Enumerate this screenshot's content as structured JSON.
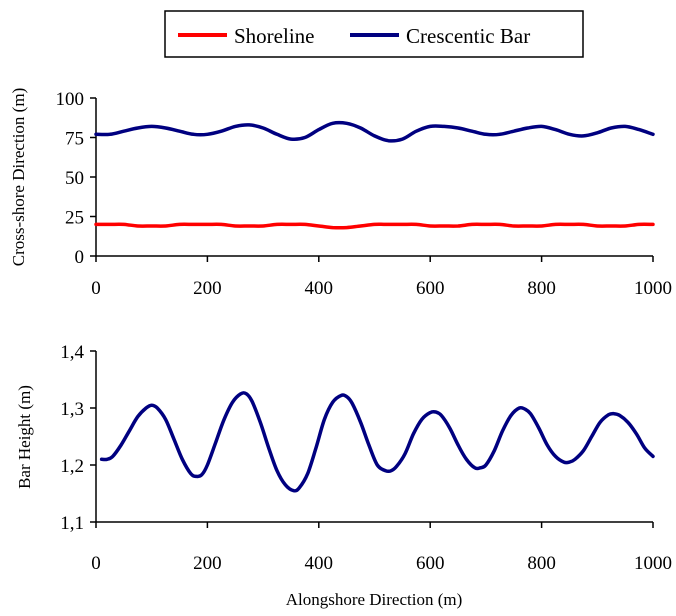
{
  "legend": {
    "items": [
      {
        "label": "Shoreline",
        "color": "#ff0000"
      },
      {
        "label": "Crescentic Bar",
        "color": "#000080"
      }
    ]
  },
  "chart_data": [
    {
      "type": "line",
      "xlabel": "",
      "ylabel": "Cross-shore Direction (m)",
      "xlim": [
        0,
        1000
      ],
      "ylim": [
        0,
        100
      ],
      "xticks": [
        "0",
        "200",
        "400",
        "600",
        "800",
        "1000"
      ],
      "yticks": [
        "0",
        "25",
        "50",
        "75",
        "100"
      ],
      "grid": false,
      "legend_position": "top",
      "series": [
        {
          "name": "Shoreline",
          "color": "#ff0000",
          "x": [
            0,
            25,
            50,
            75,
            100,
            125,
            150,
            175,
            200,
            225,
            250,
            275,
            300,
            325,
            350,
            375,
            400,
            425,
            450,
            475,
            500,
            525,
            550,
            575,
            600,
            625,
            650,
            675,
            700,
            725,
            750,
            775,
            800,
            825,
            850,
            875,
            900,
            925,
            950,
            975,
            1000
          ],
          "y": [
            20,
            20,
            20,
            19,
            19,
            19,
            20,
            20,
            20,
            20,
            19,
            19,
            19,
            20,
            20,
            20,
            19,
            18,
            18,
            19,
            20,
            20,
            20,
            20,
            19,
            19,
            19,
            20,
            20,
            20,
            19,
            19,
            19,
            20,
            20,
            20,
            19,
            19,
            19,
            20,
            20
          ]
        },
        {
          "name": "Crescentic Bar",
          "color": "#000080",
          "x": [
            0,
            25,
            50,
            75,
            100,
            125,
            150,
            175,
            200,
            225,
            250,
            275,
            300,
            325,
            350,
            375,
            400,
            425,
            450,
            475,
            500,
            525,
            550,
            575,
            600,
            625,
            650,
            675,
            700,
            725,
            750,
            775,
            800,
            825,
            850,
            875,
            900,
            925,
            950,
            975,
            1000
          ],
          "y": [
            77,
            77,
            79,
            81,
            82,
            81,
            79,
            77,
            77,
            79,
            82,
            83,
            81,
            77,
            74,
            75,
            80,
            84,
            84,
            81,
            76,
            73,
            74,
            79,
            82,
            82,
            81,
            79,
            77,
            77,
            79,
            81,
            82,
            80,
            77,
            76,
            78,
            81,
            82,
            80,
            77
          ]
        }
      ]
    },
    {
      "type": "line",
      "xlabel": "Alongshore Direction (m)",
      "ylabel": "Bar Height (m)",
      "xlim": [
        0,
        1000
      ],
      "ylim": [
        1.1,
        1.4
      ],
      "xticks": [
        "0",
        "200",
        "400",
        "600",
        "800",
        "1000"
      ],
      "yticks": [
        "1,1",
        "1,2",
        "1,3",
        "1,4"
      ],
      "grid": false,
      "series": [
        {
          "name": "Crescentic Bar",
          "color": "#000080",
          "x": [
            10,
            20,
            30,
            45,
            60,
            75,
            90,
            100,
            110,
            125,
            140,
            155,
            170,
            180,
            190,
            200,
            215,
            230,
            245,
            260,
            270,
            280,
            295,
            310,
            325,
            340,
            355,
            365,
            380,
            395,
            410,
            425,
            440,
            450,
            460,
            475,
            490,
            505,
            520,
            530,
            540,
            555,
            570,
            585,
            600,
            610,
            620,
            635,
            650,
            665,
            680,
            690,
            700,
            715,
            730,
            745,
            760,
            770,
            780,
            795,
            810,
            825,
            840,
            850,
            860,
            875,
            890,
            905,
            920,
            930,
            940,
            955,
            970,
            985,
            1000
          ],
          "y": [
            1.21,
            1.21,
            1.215,
            1.235,
            1.26,
            1.285,
            1.3,
            1.305,
            1.3,
            1.28,
            1.245,
            1.21,
            1.185,
            1.18,
            1.183,
            1.2,
            1.24,
            1.28,
            1.31,
            1.325,
            1.325,
            1.312,
            1.275,
            1.23,
            1.19,
            1.165,
            1.155,
            1.16,
            1.185,
            1.23,
            1.28,
            1.31,
            1.322,
            1.32,
            1.308,
            1.275,
            1.235,
            1.2,
            1.19,
            1.19,
            1.198,
            1.22,
            1.255,
            1.28,
            1.292,
            1.293,
            1.287,
            1.265,
            1.235,
            1.21,
            1.195,
            1.195,
            1.2,
            1.225,
            1.26,
            1.287,
            1.3,
            1.298,
            1.29,
            1.265,
            1.235,
            1.215,
            1.205,
            1.205,
            1.21,
            1.225,
            1.25,
            1.275,
            1.288,
            1.29,
            1.287,
            1.275,
            1.255,
            1.23,
            1.215
          ]
        }
      ]
    }
  ]
}
